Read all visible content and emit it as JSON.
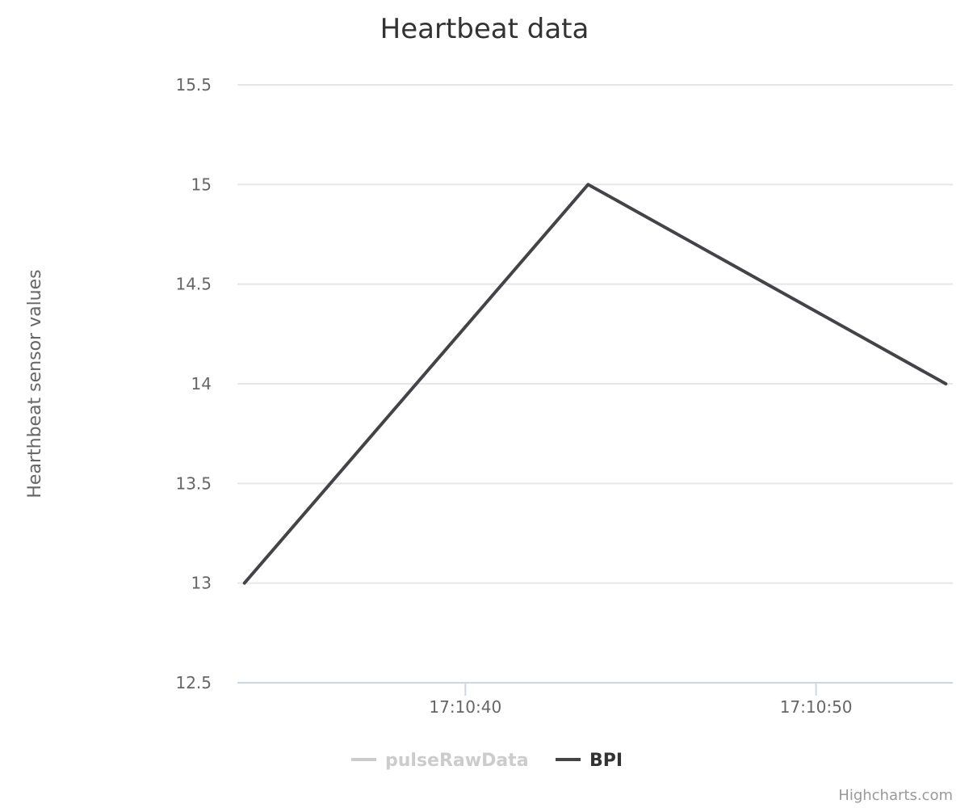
{
  "chart_data": {
    "type": "line",
    "title": "Heartbeat data",
    "ylabel": "Hearthbeat sensor values",
    "ylim": [
      12.5,
      15.5
    ],
    "y_ticks": [
      "15.5",
      "15",
      "14.5",
      "14",
      "13.5",
      "13",
      "12.5"
    ],
    "x_ticks": [
      {
        "label": "17:10:40",
        "t": 40
      },
      {
        "label": "17:10:50",
        "t": 50
      }
    ],
    "x_unit": "seconds after 17:10:00",
    "xlim": [
      33.5,
      53.9
    ],
    "series": [
      {
        "name": "pulseRawData",
        "color": "#cccccc",
        "visible": false,
        "points": []
      },
      {
        "name": "BPI",
        "color": "#434348",
        "visible": true,
        "points": [
          {
            "t": 33.7,
            "y": 13
          },
          {
            "t": 43.5,
            "y": 15
          },
          {
            "t": 53.7,
            "y": 14
          }
        ]
      }
    ],
    "legend_position": "bottom-center",
    "grid": true
  },
  "credits": "Highcharts.com"
}
